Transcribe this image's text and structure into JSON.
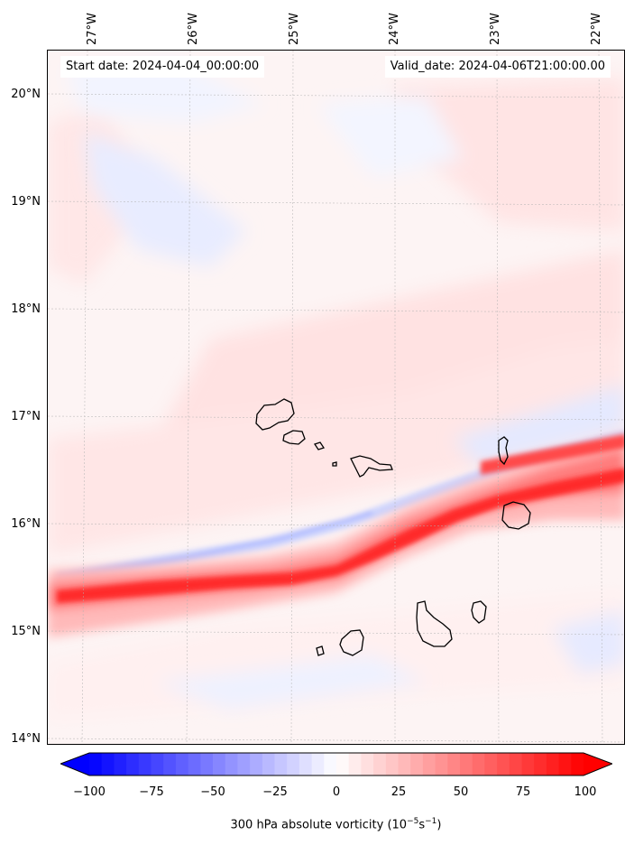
{
  "header": {
    "start_date": "Start date: 2024-04-04_00:00:00",
    "valid_date": "Valid_date: 2024-04-06T21:00:00.00"
  },
  "axes": {
    "longitude_labels": [
      "27°W",
      "26°W",
      "25°W",
      "24°W",
      "23°W",
      "22°W"
    ],
    "latitude_labels": [
      "20°N",
      "19°N",
      "18°N",
      "17°N",
      "16°N",
      "15°N",
      "14°N"
    ]
  },
  "colorbar": {
    "label_prefix": "300 hPa absolute vorticity (10",
    "label_exp1": "−5",
    "label_mid": "s",
    "label_exp2": "−1",
    "label_suffix": ")",
    "tick_labels": [
      "−100",
      "−75",
      "−50",
      "−25",
      "0",
      "25",
      "50",
      "75",
      "100"
    ],
    "min": -100,
    "max": 100,
    "colors": {
      "negative": "#0000ff",
      "neutral": "#ffffff",
      "positive": "#ff0000"
    }
  },
  "map": {
    "field": "300 hPa absolute vorticity",
    "region": "Cape Verde Islands",
    "lon_range": [
      -27.5,
      -21.8
    ],
    "lat_range": [
      13.95,
      20.45
    ]
  }
}
